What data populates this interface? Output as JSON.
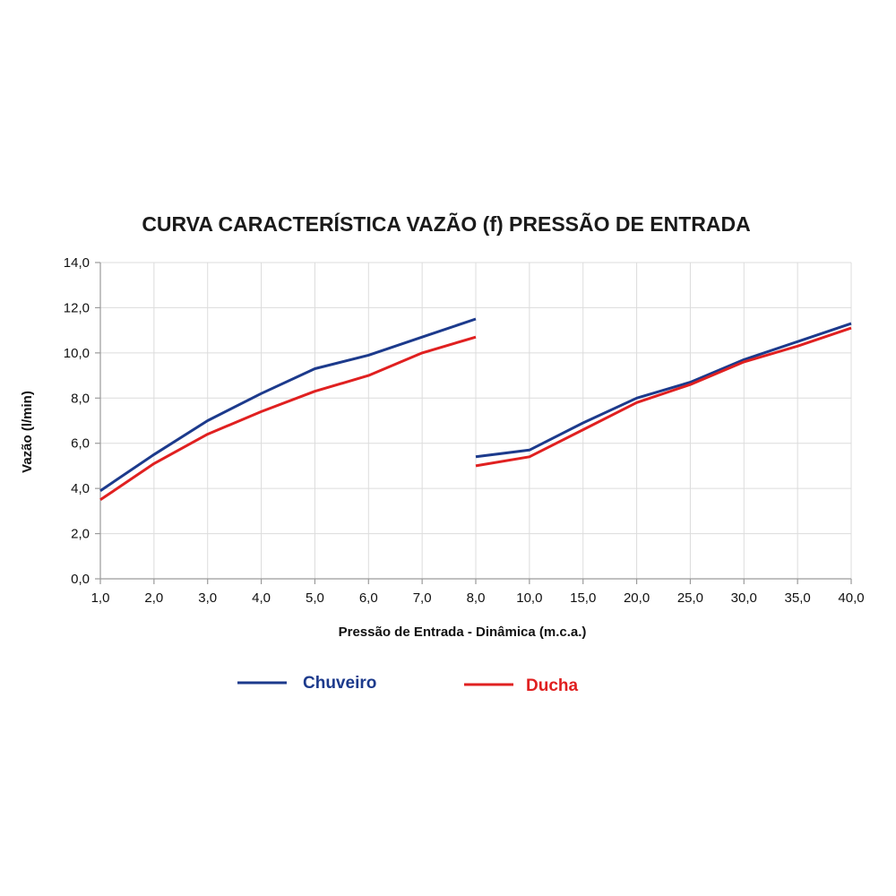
{
  "chart_data": {
    "type": "line",
    "title": "CURVA CARACTERÍSTICA VAZÃO (f) PRESSÃO DE ENTRADA",
    "xlabel": "Pressão de Entrada - Dinâmica (m.c.a.)",
    "ylabel": "Vazão (l/min)",
    "categories": [
      "1,0",
      "2,0",
      "3,0",
      "4,0",
      "5,0",
      "6,0",
      "7,0",
      "8,0",
      "10,0",
      "15,0",
      "20,0",
      "25,0",
      "30,0",
      "35,0",
      "40,0"
    ],
    "yticks": [
      "0,0",
      "2,0",
      "4,0",
      "6,0",
      "8,0",
      "10,0",
      "12,0",
      "14,0"
    ],
    "ylim": [
      0,
      14
    ],
    "grid": true,
    "legend_position": "bottom",
    "series": [
      {
        "name": "Chuveiro",
        "color": "#1c3a8c",
        "segments": [
          [
            3.9,
            5.5,
            7.0,
            8.2,
            9.3,
            9.9,
            10.7,
            11.5
          ],
          [
            5.4,
            5.7,
            6.9,
            8.0,
            8.7,
            9.7,
            10.5,
            11.3
          ]
        ]
      },
      {
        "name": "Ducha",
        "color": "#e02020",
        "segments": [
          [
            3.5,
            5.1,
            6.4,
            7.4,
            8.3,
            9.0,
            10.0,
            10.7
          ],
          [
            5.0,
            5.4,
            6.6,
            7.8,
            8.6,
            9.6,
            10.3,
            11.1
          ]
        ]
      }
    ]
  }
}
